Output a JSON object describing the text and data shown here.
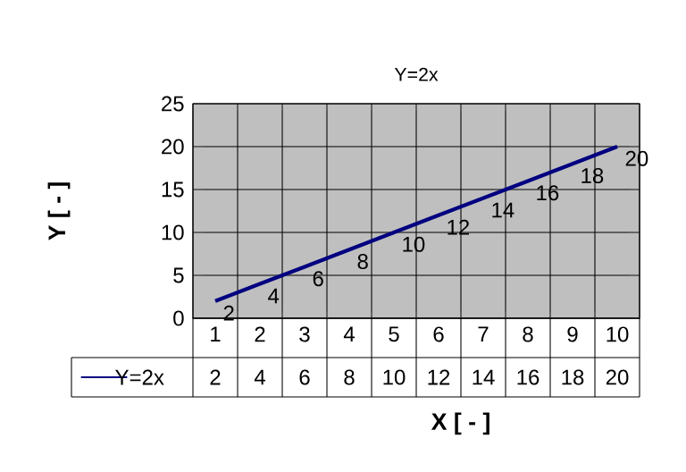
{
  "chart_data": {
    "type": "line",
    "title": "Y=2x",
    "xlabel": "X [ - ]",
    "ylabel": "Y [ - ]",
    "categories": [
      "1",
      "2",
      "3",
      "4",
      "5",
      "6",
      "7",
      "8",
      "9",
      "10"
    ],
    "series": [
      {
        "name": "Y=2x",
        "color": "#000080",
        "values": [
          2,
          4,
          6,
          8,
          10,
          12,
          14,
          16,
          18,
          20
        ],
        "value_labels": [
          "2",
          "4",
          "6",
          "8",
          "10",
          "12",
          "14",
          "16",
          "18",
          "20"
        ]
      }
    ],
    "ylim": [
      0,
      25
    ],
    "yticks": [
      0,
      5,
      10,
      15,
      20,
      25
    ],
    "annotations": [
      "2",
      "4",
      "6",
      "8",
      "10",
      "12",
      "14",
      "16",
      "18",
      "20"
    ],
    "grid": true,
    "legend": "bottom",
    "data_labels": true
  }
}
